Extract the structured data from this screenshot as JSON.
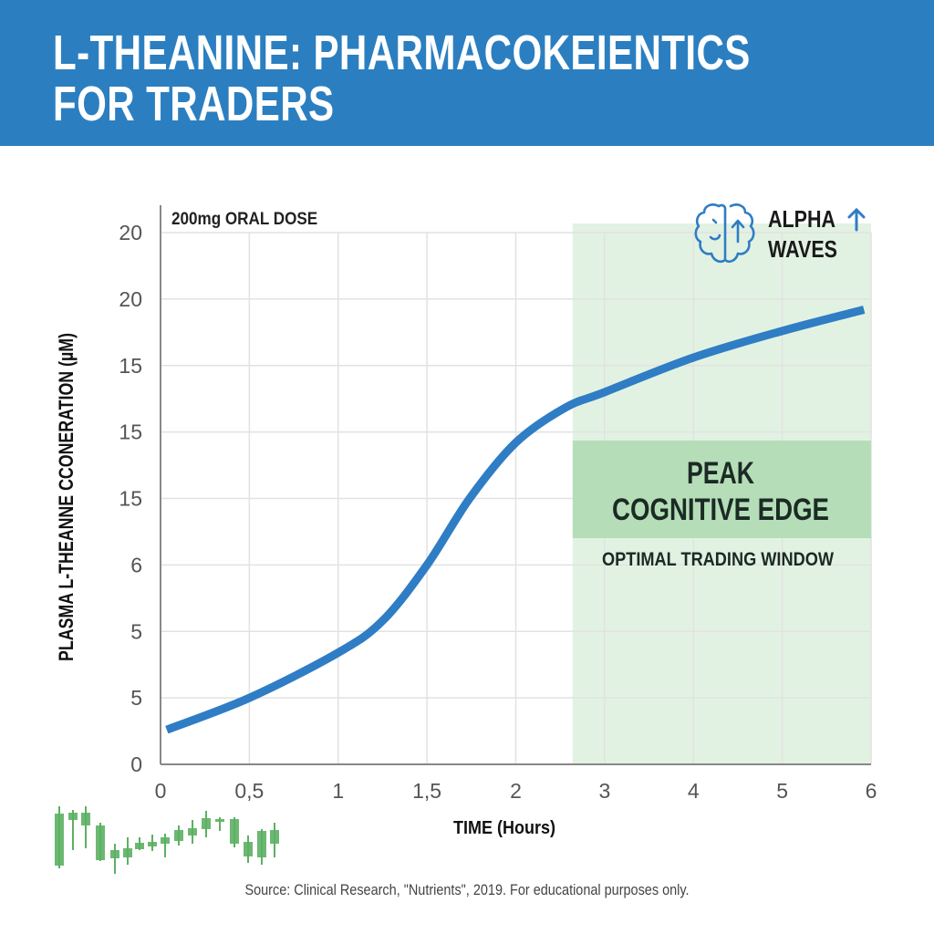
{
  "header": {
    "title_line1": "L-THEANINE: PHARMACOKEIENTICS",
    "title_line2": "FOR TRADERS",
    "background_color": "#2b7fc0"
  },
  "chart_data": {
    "type": "line",
    "annotation_dose": "200mg ORAL DOSE",
    "xlabel": "TIME (Hours)",
    "ylabel": "PLASMA L-THEANNE CCONERATION (µM)",
    "x_tick_labels": [
      "0",
      "0,5",
      "1",
      "1,5",
      "2",
      "3",
      "4",
      "5",
      "6"
    ],
    "y_tick_labels_bottom_to_top": [
      "0",
      "5",
      "5",
      "6",
      "15",
      "15",
      "15",
      "20",
      "20"
    ],
    "ylim": [
      0,
      20
    ],
    "grid": true,
    "series": [
      {
        "color": "#2f7dc4",
        "x": [
          0.035,
          0.5,
          1,
          1.25,
          1.5,
          1.74,
          2,
          2.55,
          3,
          4,
          5,
          5.92
        ],
        "y": [
          1.3,
          2.5,
          4.2,
          5.4,
          7.5,
          10.0,
          12.1,
          13.4,
          14.0,
          15.3,
          16.3,
          17.1
        ]
      }
    ],
    "highlight_region": {
      "x_start": 2.64,
      "x_end": 6,
      "color": "#d8eed8",
      "label_line1": "PEAK",
      "label_line2": "COGNITIVE EDGE",
      "sublabel": "OPTIMAL TRADING WINDOW",
      "band_color": "#b5deb8"
    },
    "badge": {
      "icon": "brain-icon",
      "line1": "ALPHA",
      "line2": "WAVES",
      "arrow_icon": "arrow-up-icon",
      "color": "#2f7dc4"
    }
  },
  "decoration": {
    "icon": "candlestick-chart-icon",
    "color": "#5cb063"
  },
  "footer": {
    "source": "Source: Clinical Research, \"Nutrients\", 2019. For educational purposes only."
  }
}
